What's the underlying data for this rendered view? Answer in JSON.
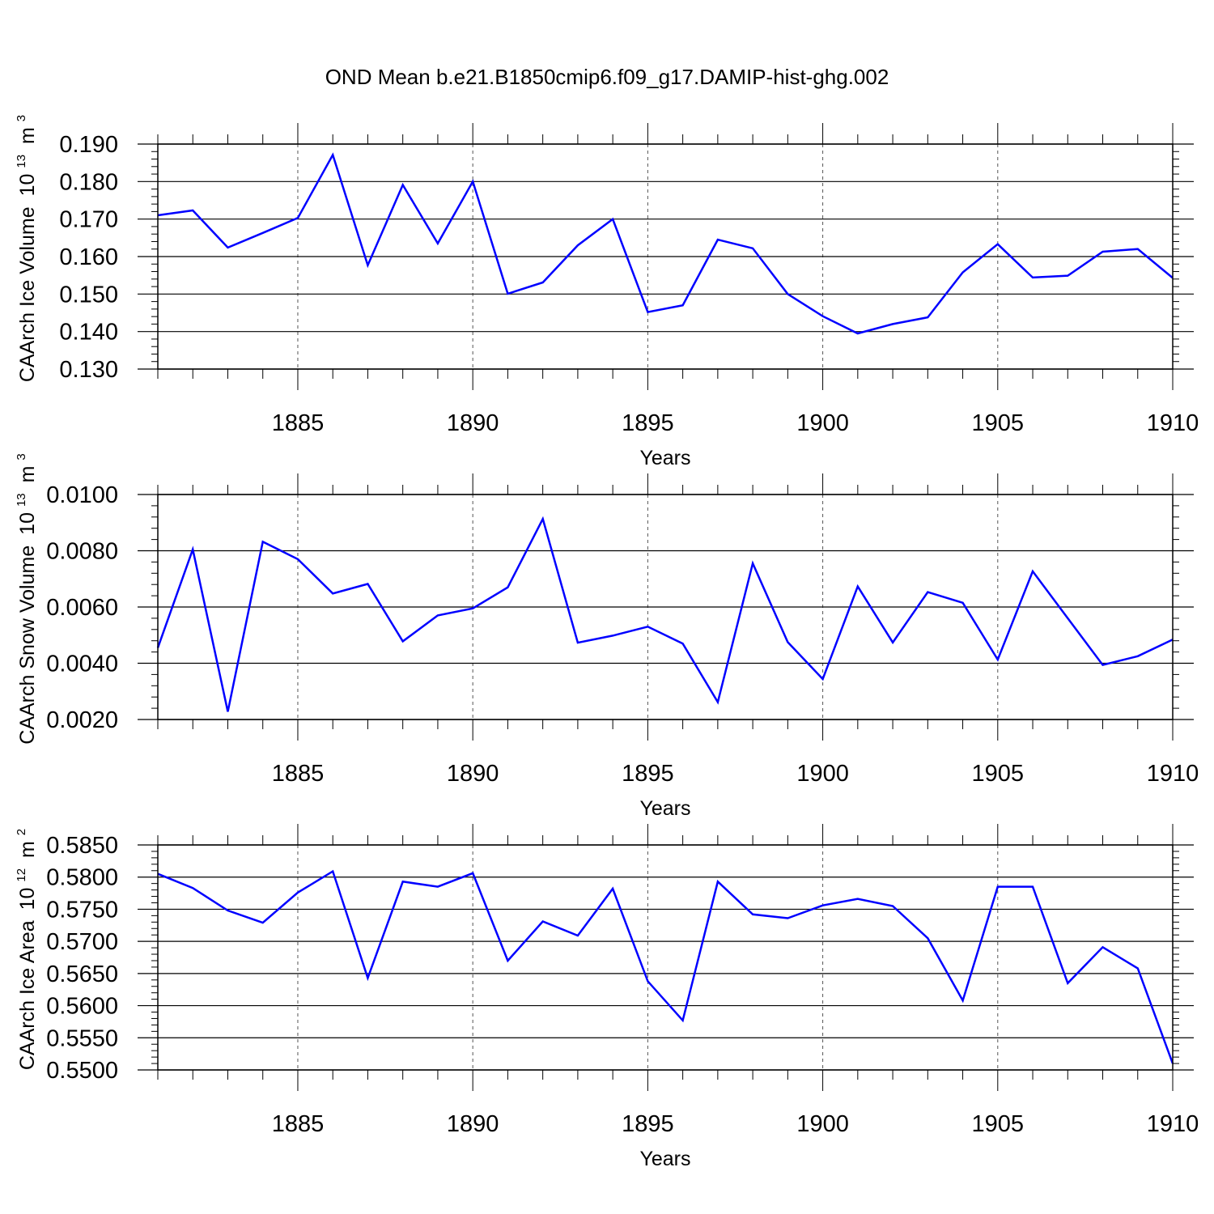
{
  "title": "OND Mean b.e21.B1850cmip6.f09_g17.DAMIP-hist-ghg.002",
  "colors": {
    "line": "#0000ff",
    "axis": "#000000",
    "grid": "#555555"
  },
  "chart_data": [
    {
      "type": "line",
      "ylabel": "CAArch Ice Volume",
      "yunit_base": "10",
      "yunit_exp": "13",
      "yunit_sym": "m",
      "yunit_symexp": "3",
      "xlabel": "Years",
      "xlim": [
        1881,
        1910
      ],
      "ylim": [
        0.13,
        0.19
      ],
      "xticks": [
        1885,
        1890,
        1895,
        1900,
        1905,
        1910
      ],
      "xtick_labels": [
        "1885",
        "1890",
        "1895",
        "1900",
        "1905",
        "1910"
      ],
      "yticks": [
        0.13,
        0.14,
        0.15,
        0.16,
        0.17,
        0.18,
        0.19
      ],
      "ytick_labels": [
        "0.130",
        "0.140",
        "0.150",
        "0.160",
        "0.170",
        "0.180",
        "0.190"
      ],
      "x": [
        1881,
        1882,
        1883,
        1884,
        1885,
        1886,
        1887,
        1888,
        1889,
        1890,
        1891,
        1892,
        1893,
        1894,
        1895,
        1896,
        1897,
        1898,
        1899,
        1900,
        1901,
        1902,
        1903,
        1904,
        1905,
        1906,
        1907,
        1908,
        1909,
        1910
      ],
      "values": [
        0.171,
        0.1723,
        0.1624,
        0.1663,
        0.1703,
        0.1871,
        0.1577,
        0.1791,
        0.1635,
        0.18,
        0.1501,
        0.1531,
        0.163,
        0.17,
        0.1452,
        0.147,
        0.1645,
        0.1622,
        0.15,
        0.1441,
        0.1395,
        0.142,
        0.1438,
        0.1558,
        0.1633,
        0.1544,
        0.1549,
        0.1613,
        0.162,
        0.1543
      ]
    },
    {
      "type": "line",
      "ylabel": "CAArch Snow Volume",
      "yunit_base": "10",
      "yunit_exp": "13",
      "yunit_sym": "m",
      "yunit_symexp": "3",
      "xlabel": "Years",
      "xlim": [
        1881,
        1910
      ],
      "ylim": [
        0.002,
        0.01
      ],
      "xticks": [
        1885,
        1890,
        1895,
        1900,
        1905,
        1910
      ],
      "xtick_labels": [
        "1885",
        "1890",
        "1895",
        "1900",
        "1905",
        "1910"
      ],
      "yticks": [
        0.002,
        0.004,
        0.006,
        0.008,
        0.01
      ],
      "ytick_labels": [
        "0.0020",
        "0.0040",
        "0.0060",
        "0.0080",
        "0.0100"
      ],
      "x": [
        1881,
        1882,
        1883,
        1884,
        1885,
        1886,
        1887,
        1888,
        1889,
        1890,
        1891,
        1892,
        1893,
        1894,
        1895,
        1896,
        1897,
        1898,
        1899,
        1900,
        1901,
        1902,
        1903,
        1904,
        1905,
        1906,
        1907,
        1908,
        1909,
        1910
      ],
      "values": [
        0.00455,
        0.00805,
        0.00228,
        0.00832,
        0.0077,
        0.00648,
        0.00682,
        0.00478,
        0.0057,
        0.00595,
        0.0067,
        0.00913,
        0.00473,
        0.00498,
        0.0053,
        0.0047,
        0.00262,
        0.00755,
        0.00475,
        0.00344,
        0.00673,
        0.00474,
        0.00653,
        0.00615,
        0.00413,
        0.00727,
        0.0056,
        0.00394,
        0.00425,
        0.00484
      ]
    },
    {
      "type": "line",
      "ylabel": "CAArch Ice Area",
      "yunit_base": "10",
      "yunit_exp": "12",
      "yunit_sym": "m",
      "yunit_symexp": "2",
      "xlabel": "Years",
      "xlim": [
        1881,
        1910
      ],
      "ylim": [
        0.55,
        0.585
      ],
      "xticks": [
        1885,
        1890,
        1895,
        1900,
        1905,
        1910
      ],
      "xtick_labels": [
        "1885",
        "1890",
        "1895",
        "1900",
        "1905",
        "1910"
      ],
      "yticks": [
        0.55,
        0.555,
        0.56,
        0.565,
        0.57,
        0.575,
        0.58,
        0.585
      ],
      "ytick_labels": [
        "0.5500",
        "0.5550",
        "0.5600",
        "0.5650",
        "0.5700",
        "0.5750",
        "0.5800",
        "0.5850"
      ],
      "x": [
        1881,
        1882,
        1883,
        1884,
        1885,
        1886,
        1887,
        1888,
        1889,
        1890,
        1891,
        1892,
        1893,
        1894,
        1895,
        1896,
        1897,
        1898,
        1899,
        1900,
        1901,
        1902,
        1903,
        1904,
        1905,
        1906,
        1907,
        1908,
        1909,
        1910
      ],
      "values": [
        0.5805,
        0.5783,
        0.5748,
        0.5729,
        0.5776,
        0.5809,
        0.5643,
        0.5793,
        0.5785,
        0.5806,
        0.567,
        0.5731,
        0.5709,
        0.5782,
        0.5638,
        0.5577,
        0.5793,
        0.5742,
        0.5736,
        0.5756,
        0.5766,
        0.5755,
        0.5705,
        0.5608,
        0.5785,
        0.5785,
        0.5635,
        0.5691,
        0.5658,
        0.551
      ]
    }
  ]
}
